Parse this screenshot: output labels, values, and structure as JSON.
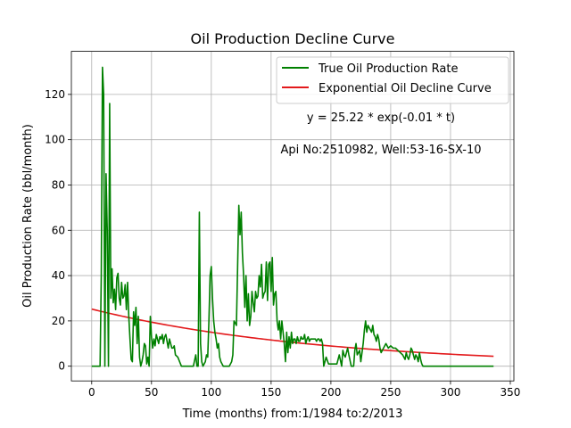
{
  "chart_data": {
    "type": "line",
    "title": "Oil Production Decline Curve",
    "xlabel": "Time (months) from:1/1984 to:2/2013",
    "ylabel": "Oil Production Rate (bbl/month)",
    "xlim": [
      -17,
      353
    ],
    "ylim": [
      -6.5,
      139
    ],
    "x_ticks": [
      0,
      50,
      100,
      150,
      200,
      250,
      300,
      350
    ],
    "y_ticks": [
      0,
      20,
      40,
      60,
      80,
      100,
      120
    ],
    "grid": true,
    "legend_position": "top-right",
    "annotations": [
      "y = 25.22 * exp(-0.01 * t)",
      "Api No:2510982, Well:53-16-SX-10"
    ],
    "series": [
      {
        "name": "True Oil Production Rate",
        "color": "#008000",
        "points": [
          [
            0,
            0
          ],
          [
            6,
            0
          ],
          [
            7,
            0
          ],
          [
            8,
            40
          ],
          [
            9,
            132
          ],
          [
            10,
            120
          ],
          [
            11,
            0
          ],
          [
            12,
            85
          ],
          [
            13,
            60
          ],
          [
            14,
            0
          ],
          [
            15,
            116
          ],
          [
            16,
            30
          ],
          [
            17,
            43
          ],
          [
            18,
            28
          ],
          [
            19,
            34
          ],
          [
            20,
            25
          ],
          [
            21,
            39
          ],
          [
            22,
            41
          ],
          [
            23,
            30
          ],
          [
            24,
            27
          ],
          [
            25,
            37
          ],
          [
            26,
            30
          ],
          [
            27,
            31
          ],
          [
            28,
            36
          ],
          [
            29,
            25
          ],
          [
            30,
            37
          ],
          [
            31,
            22
          ],
          [
            32,
            12
          ],
          [
            33,
            3
          ],
          [
            34,
            2
          ],
          [
            35,
            24
          ],
          [
            36,
            18
          ],
          [
            37,
            26
          ],
          [
            38,
            10
          ],
          [
            39,
            22
          ],
          [
            40,
            4
          ],
          [
            41,
            0
          ],
          [
            42,
            2
          ],
          [
            43,
            5
          ],
          [
            44,
            10
          ],
          [
            45,
            9
          ],
          [
            46,
            1
          ],
          [
            47,
            4
          ],
          [
            48,
            0
          ],
          [
            49,
            22
          ],
          [
            50,
            13
          ],
          [
            51,
            8
          ],
          [
            52,
            12
          ],
          [
            53,
            9
          ],
          [
            54,
            14
          ],
          [
            55,
            12
          ],
          [
            56,
            10
          ],
          [
            57,
            13
          ],
          [
            58,
            12
          ],
          [
            59,
            14
          ],
          [
            60,
            10
          ],
          [
            61,
            13
          ],
          [
            62,
            14
          ],
          [
            63,
            11
          ],
          [
            64,
            8
          ],
          [
            65,
            12
          ],
          [
            66,
            10
          ],
          [
            67,
            8
          ],
          [
            68,
            8
          ],
          [
            69,
            9
          ],
          [
            70,
            5
          ],
          [
            72,
            4
          ],
          [
            75,
            0
          ],
          [
            80,
            0
          ],
          [
            85,
            0
          ],
          [
            87,
            5
          ],
          [
            88,
            0
          ],
          [
            89,
            0
          ],
          [
            90,
            68
          ],
          [
            91,
            10
          ],
          [
            92,
            2
          ],
          [
            93,
            0
          ],
          [
            95,
            2
          ],
          [
            96,
            5
          ],
          [
            97,
            4
          ],
          [
            98,
            20
          ],
          [
            99,
            40
          ],
          [
            100,
            44
          ],
          [
            101,
            30
          ],
          [
            102,
            20
          ],
          [
            103,
            15
          ],
          [
            104,
            12
          ],
          [
            105,
            8
          ],
          [
            106,
            10
          ],
          [
            107,
            4
          ],
          [
            108,
            2
          ],
          [
            110,
            0
          ],
          [
            115,
            0
          ],
          [
            117,
            2
          ],
          [
            118,
            5
          ],
          [
            119,
            20
          ],
          [
            120,
            19
          ],
          [
            121,
            18
          ],
          [
            122,
            44
          ],
          [
            123,
            71
          ],
          [
            124,
            58
          ],
          [
            125,
            68
          ],
          [
            126,
            50
          ],
          [
            127,
            40
          ],
          [
            128,
            26
          ],
          [
            129,
            40
          ],
          [
            130,
            20
          ],
          [
            131,
            32
          ],
          [
            132,
            18
          ],
          [
            133,
            22
          ],
          [
            134,
            33
          ],
          [
            135,
            28
          ],
          [
            136,
            24
          ],
          [
            137,
            33
          ],
          [
            138,
            30
          ],
          [
            139,
            31
          ],
          [
            140,
            40
          ],
          [
            141,
            35
          ],
          [
            142,
            45
          ],
          [
            143,
            30
          ],
          [
            144,
            32
          ],
          [
            145,
            33
          ],
          [
            146,
            46
          ],
          [
            147,
            29
          ],
          [
            148,
            45
          ],
          [
            149,
            46
          ],
          [
            150,
            33
          ],
          [
            151,
            48
          ],
          [
            152,
            27
          ],
          [
            153,
            32
          ],
          [
            154,
            33
          ],
          [
            155,
            20
          ],
          [
            156,
            16
          ],
          [
            157,
            20
          ],
          [
            158,
            12
          ],
          [
            159,
            20
          ],
          [
            160,
            15
          ],
          [
            161,
            10
          ],
          [
            162,
            2
          ],
          [
            163,
            15
          ],
          [
            164,
            6
          ],
          [
            165,
            13
          ],
          [
            166,
            8
          ],
          [
            167,
            15
          ],
          [
            168,
            10
          ],
          [
            169,
            12
          ],
          [
            170,
            12
          ],
          [
            171,
            10
          ],
          [
            172,
            13
          ],
          [
            173,
            11
          ],
          [
            174,
            11
          ],
          [
            175,
            13
          ],
          [
            176,
            12
          ],
          [
            177,
            12
          ],
          [
            178,
            14
          ],
          [
            179,
            10
          ],
          [
            180,
            12
          ],
          [
            181,
            13
          ],
          [
            182,
            11
          ],
          [
            183,
            12
          ],
          [
            184,
            12
          ],
          [
            185,
            12
          ],
          [
            186,
            12
          ],
          [
            187,
            12
          ],
          [
            188,
            11
          ],
          [
            189,
            12
          ],
          [
            190,
            12
          ],
          [
            191,
            11
          ],
          [
            192,
            12
          ],
          [
            193,
            10
          ],
          [
            194,
            0
          ],
          [
            196,
            4
          ],
          [
            198,
            1
          ],
          [
            200,
            1
          ],
          [
            202,
            1
          ],
          [
            205,
            1
          ],
          [
            207,
            5
          ],
          [
            209,
            0
          ],
          [
            210,
            7
          ],
          [
            211,
            5
          ],
          [
            212,
            4
          ],
          [
            214,
            8
          ],
          [
            215,
            5
          ],
          [
            217,
            0
          ],
          [
            219,
            0
          ],
          [
            220,
            7
          ],
          [
            221,
            10
          ],
          [
            222,
            5
          ],
          [
            224,
            7
          ],
          [
            225,
            2
          ],
          [
            227,
            10
          ],
          [
            228,
            16
          ],
          [
            229,
            20
          ],
          [
            230,
            15
          ],
          [
            231,
            18
          ],
          [
            232,
            17
          ],
          [
            233,
            16
          ],
          [
            234,
            15
          ],
          [
            235,
            18
          ],
          [
            236,
            14
          ],
          [
            237,
            13
          ],
          [
            238,
            11
          ],
          [
            239,
            14
          ],
          [
            240,
            12
          ],
          [
            241,
            8
          ],
          [
            242,
            6
          ],
          [
            244,
            8
          ],
          [
            246,
            10
          ],
          [
            248,
            8
          ],
          [
            250,
            9
          ],
          [
            252,
            8
          ],
          [
            254,
            8
          ],
          [
            256,
            7
          ],
          [
            258,
            6
          ],
          [
            260,
            5
          ],
          [
            262,
            3
          ],
          [
            263,
            6
          ],
          [
            264,
            4
          ],
          [
            265,
            3
          ],
          [
            266,
            5
          ],
          [
            267,
            8
          ],
          [
            268,
            7
          ],
          [
            269,
            5
          ],
          [
            270,
            3
          ],
          [
            271,
            5
          ],
          [
            272,
            4
          ],
          [
            273,
            2
          ],
          [
            274,
            6
          ],
          [
            275,
            3
          ],
          [
            276,
            1
          ],
          [
            277,
            0
          ],
          [
            280,
            0
          ],
          [
            300,
            0
          ],
          [
            320,
            0
          ],
          [
            336,
            0
          ]
        ]
      },
      {
        "name": "Exponential Oil Decline Curve",
        "color": "#e31a1c",
        "function": {
          "a": 25.22,
          "b": -0.0052,
          "t_min": 0,
          "t_max": 336
        }
      }
    ]
  }
}
